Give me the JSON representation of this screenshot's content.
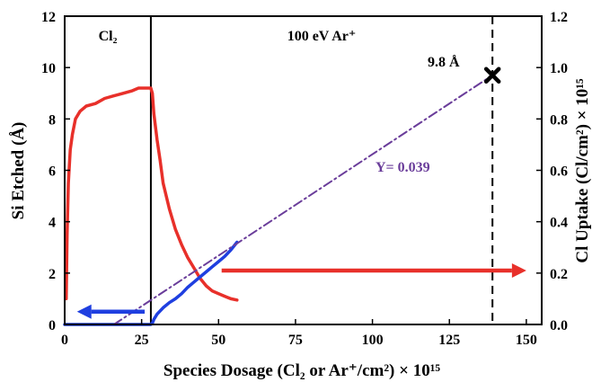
{
  "chart_data": {
    "type": "line",
    "xlabel": "Species Dosage (Cl₂ or Ar⁺/cm²) × 10¹⁵",
    "ylabel": "Si Etched (Å)",
    "y2label": "Cl Uptake (Cl/cm²) × 10¹⁵",
    "xlim": [
      0,
      155
    ],
    "ylim": [
      0,
      12
    ],
    "y2lim": [
      0,
      1.2
    ],
    "xticks": [
      0,
      25,
      50,
      75,
      100,
      125,
      150
    ],
    "yticks": [
      0,
      2,
      4,
      6,
      8,
      10,
      12
    ],
    "y2ticks": [
      "0.0",
      "0.2",
      "0.4",
      "0.6",
      "0.8",
      "1.0",
      "1.2"
    ],
    "regions": [
      {
        "label": "Cl₂",
        "x_end": 28
      },
      {
        "label": "100 eV Ar⁺"
      }
    ],
    "annotations": {
      "point_label": "9.8 Å",
      "slope_label": "Y= 0.039",
      "marker_x": 139,
      "marker_y": 9.7,
      "dashed_vline_x": 139
    },
    "series": [
      {
        "axis": "right",
        "color": "#e8302a",
        "x": [
          0.5,
          0.8,
          1.2,
          1.8,
          2.5,
          3.5,
          5,
          7,
          10,
          13,
          16,
          19,
          22,
          24,
          26,
          28,
          28.5,
          29,
          30,
          31,
          32,
          34,
          36,
          38,
          40,
          42,
          44,
          46,
          48,
          50,
          52,
          54,
          56
        ],
        "values": [
          0.1,
          0.35,
          0.55,
          0.68,
          0.74,
          0.8,
          0.83,
          0.85,
          0.86,
          0.88,
          0.89,
          0.9,
          0.91,
          0.92,
          0.92,
          0.92,
          0.9,
          0.82,
          0.72,
          0.64,
          0.55,
          0.45,
          0.37,
          0.31,
          0.26,
          0.22,
          0.18,
          0.15,
          0.13,
          0.12,
          0.11,
          0.1,
          0.095
        ]
      },
      {
        "axis": "left",
        "color": "#1f3fe0",
        "x": [
          0,
          28,
          28.5,
          29,
          30,
          32,
          34,
          36,
          38,
          40,
          42,
          44,
          46,
          48,
          50,
          52,
          54,
          56
        ],
        "values": [
          0,
          0,
          0.05,
          0.2,
          0.4,
          0.65,
          0.85,
          1.0,
          1.2,
          1.45,
          1.65,
          1.85,
          2.05,
          2.25,
          2.45,
          2.65,
          2.9,
          3.2
        ]
      },
      {
        "axis": "left",
        "color": "#6a3d9a",
        "style": "dash-dot",
        "x": [
          16,
          139
        ],
        "values": [
          0,
          9.7
        ]
      }
    ],
    "arrows": [
      {
        "color": "#1f3fe0",
        "direction": "left",
        "x_from": 26,
        "x_to": 4,
        "y": 0.5
      },
      {
        "color": "#e8302a",
        "direction": "right",
        "x_from": 51,
        "x_to": 150,
        "y": 2.1
      }
    ],
    "grid": false,
    "legend": "none"
  }
}
